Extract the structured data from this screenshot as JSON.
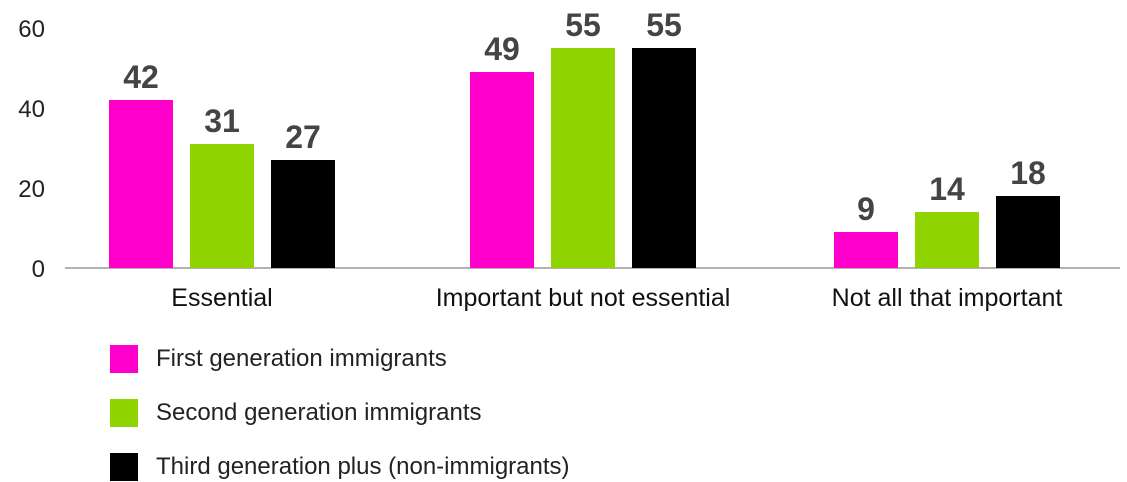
{
  "chart_data": {
    "type": "bar",
    "categories": [
      "Essential",
      "Important but not essential",
      "Not all that important"
    ],
    "series": [
      {
        "name": "First generation immigrants",
        "values": [
          42,
          49,
          9
        ],
        "color": "#ff00cc"
      },
      {
        "name": "Second generation immigrants",
        "values": [
          31,
          55,
          14
        ],
        "color": "#8fd400"
      },
      {
        "name": "Third generation plus (non-immigrants)",
        "values": [
          27,
          55,
          18
        ],
        "color": "#000000"
      }
    ],
    "yticks": [
      "0",
      "20",
      "40",
      "60"
    ],
    "ylim": [
      0,
      60
    ],
    "grid": false,
    "legend_position": "bottom-left"
  }
}
